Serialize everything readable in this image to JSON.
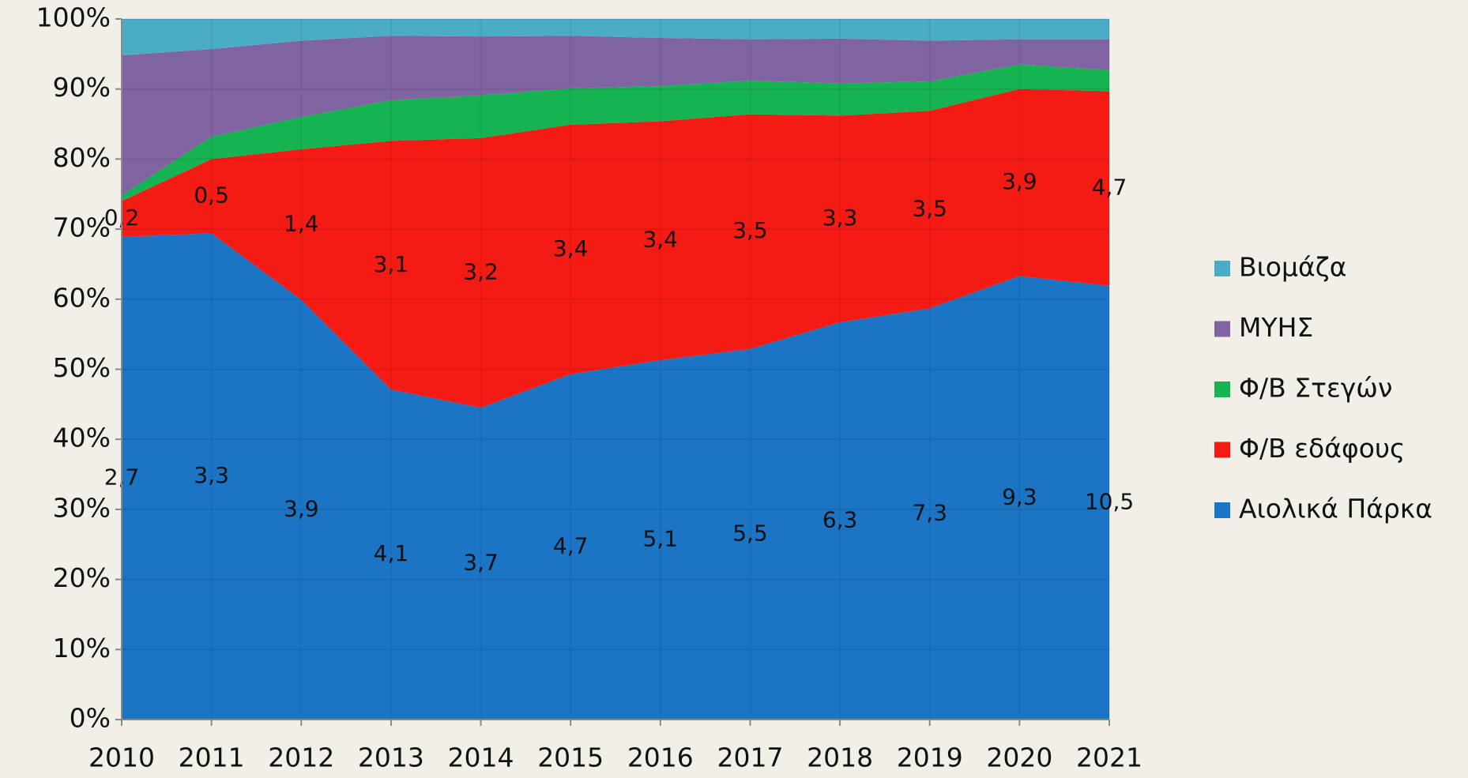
{
  "chart_data": {
    "type": "stacked_area_100",
    "categories": [
      "2010",
      "2011",
      "2012",
      "2013",
      "2014",
      "2015",
      "2016",
      "2017",
      "2018",
      "2019",
      "2020",
      "2021"
    ],
    "series": [
      {
        "name": "Αιολικά Πάρκα",
        "color": "#1b74c4",
        "values": [
          68.9,
          69.4,
          59.9,
          47.1,
          44.5,
          49.3,
          51.3,
          52.9,
          56.7,
          58.7,
          63.3,
          61.9
        ],
        "point_labels": [
          "2,7",
          "3,3",
          "3,9",
          "4,1",
          "3,7",
          "4,7",
          "5,1",
          "5,5",
          "6,3",
          "7,3",
          "9,3",
          "10,5"
        ]
      },
      {
        "name": "Φ/Β εδάφους",
        "color": "#f41b14",
        "values": [
          5.1,
          10.6,
          21.5,
          35.5,
          38.5,
          35.6,
          34.1,
          33.5,
          29.5,
          28.2,
          26.7,
          27.8
        ],
        "point_labels": [
          "0,2",
          "0,5",
          "1,4",
          "3,1",
          "3,2",
          "3,4",
          "3,4",
          "3,5",
          "3,3",
          "3,5",
          "3,9",
          "4,7"
        ]
      },
      {
        "name": "Φ/Β Στεγών",
        "color": "#16b352",
        "values": [
          0.8,
          3.2,
          4.6,
          5.8,
          6.1,
          5.2,
          5.0,
          4.8,
          4.6,
          4.2,
          3.5,
          3.0
        ]
      },
      {
        "name": "ΜΥΗΣ",
        "color": "#8064a2",
        "values": [
          20.0,
          12.5,
          10.9,
          9.2,
          8.4,
          7.5,
          6.9,
          5.9,
          6.4,
          5.8,
          3.6,
          4.4
        ]
      },
      {
        "name": "Βιομάζα",
        "color": "#4bacc6",
        "values": [
          5.2,
          4.3,
          3.1,
          2.4,
          2.5,
          2.4,
          2.7,
          2.9,
          2.8,
          3.1,
          2.9,
          2.9
        ]
      }
    ],
    "ylim": [
      0,
      100
    ],
    "yticks": [
      {
        "value": 0,
        "label": "0%"
      },
      {
        "value": 10,
        "label": "10%"
      },
      {
        "value": 20,
        "label": "20%"
      },
      {
        "value": 30,
        "label": "30%"
      },
      {
        "value": 40,
        "label": "40%"
      },
      {
        "value": 50,
        "label": "50%"
      },
      {
        "value": 60,
        "label": "60%"
      },
      {
        "value": 70,
        "label": "70%"
      },
      {
        "value": 80,
        "label": "80%"
      },
      {
        "value": 90,
        "label": "90%"
      },
      {
        "value": 100,
        "label": "100%"
      }
    ],
    "grid": true,
    "legend": "right"
  }
}
